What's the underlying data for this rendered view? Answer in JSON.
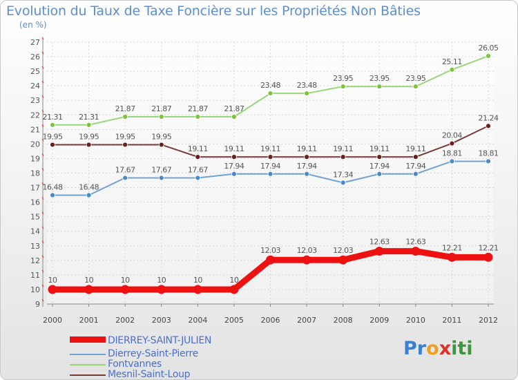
{
  "title": "Evolution du Taux de Taxe Foncière sur les Propriétés Non Bâties",
  "unit_label": "(en %)",
  "logo": {
    "text": "Proxiti",
    "letters": [
      "P",
      "r",
      "o",
      "x",
      "i",
      "t",
      "i"
    ],
    "colors": [
      "#3a7fd0",
      "#3a7fd0",
      "#f0a020",
      "#e0302a",
      "#3a9a3a",
      "#3a9a3a",
      "#3a9a3a"
    ]
  },
  "chart_data": {
    "type": "line",
    "x": [
      "2000",
      "2001",
      "2002",
      "2003",
      "2004",
      "2005",
      "2006",
      "2007",
      "2008",
      "2009",
      "2010",
      "2011",
      "2012"
    ],
    "ylim": [
      9,
      27
    ],
    "yticks": [
      "9",
      "10",
      "11",
      "12",
      "13",
      "14",
      "15",
      "16",
      "17",
      "18",
      "19",
      "20",
      "21",
      "22",
      "23",
      "24",
      "25",
      "26",
      "27"
    ],
    "grid": true,
    "legend_position": "bottom-left",
    "series": [
      {
        "name": "Fontvannes",
        "color": "#99d67a",
        "marker": "#7cc43b",
        "width": 2,
        "values": [
          21.31,
          21.31,
          21.87,
          21.87,
          21.87,
          21.87,
          23.48,
          23.48,
          23.95,
          23.95,
          23.95,
          25.11,
          26.05
        ],
        "labels": [
          "21.31",
          "21.31",
          "21.87",
          "21.87",
          "21.87",
          "21.87",
          "23.48",
          "23.48",
          "23.95",
          "23.95",
          "23.95",
          "25.11",
          "26.05"
        ]
      },
      {
        "name": "Mesnil-Saint-Loup",
        "color": "#7a3a3a",
        "marker": "#6a1f1f",
        "width": 2,
        "values": [
          19.95,
          19.95,
          19.95,
          19.95,
          19.11,
          19.11,
          19.11,
          19.11,
          19.11,
          19.11,
          19.11,
          20.04,
          21.24
        ],
        "labels": [
          "19.95",
          "19.95",
          "19.95",
          "19.95",
          "19.11",
          "19.11",
          "19.11",
          "19.11",
          "19.11",
          "19.11",
          "19.11",
          "20.04",
          "21.24"
        ]
      },
      {
        "name": "Dierrey-Saint-Pierre",
        "color": "#6fa3d6",
        "marker": "#4a8ac8",
        "width": 2,
        "values": [
          16.48,
          16.48,
          17.67,
          17.67,
          17.67,
          17.94,
          17.94,
          17.94,
          17.34,
          17.94,
          17.94,
          18.81,
          18.81
        ],
        "labels": [
          "16.48",
          "16.48",
          "17.67",
          "17.67",
          "17.67",
          "17.94",
          "17.94",
          "17.94",
          "17.34",
          "17.94",
          "17.94",
          "18.81",
          "18.81"
        ]
      },
      {
        "name": "DIERREY-SAINT-JULIEN",
        "color": "#ee1111",
        "marker": "#ee1111",
        "width": 9,
        "values": [
          10,
          10,
          10,
          10,
          10,
          10,
          12.03,
          12.03,
          12.03,
          12.63,
          12.63,
          12.21,
          12.21
        ],
        "labels": [
          "10",
          "10",
          "10",
          "10",
          "10",
          "10",
          "12.03",
          "12.03",
          "12.03",
          "12.63",
          "12.63",
          "12.21",
          "12.21"
        ]
      }
    ],
    "legend": [
      "DIERREY-SAINT-JULIEN",
      "Dierrey-Saint-Pierre",
      "Fontvannes",
      "Mesnil-Saint-Loup"
    ]
  }
}
